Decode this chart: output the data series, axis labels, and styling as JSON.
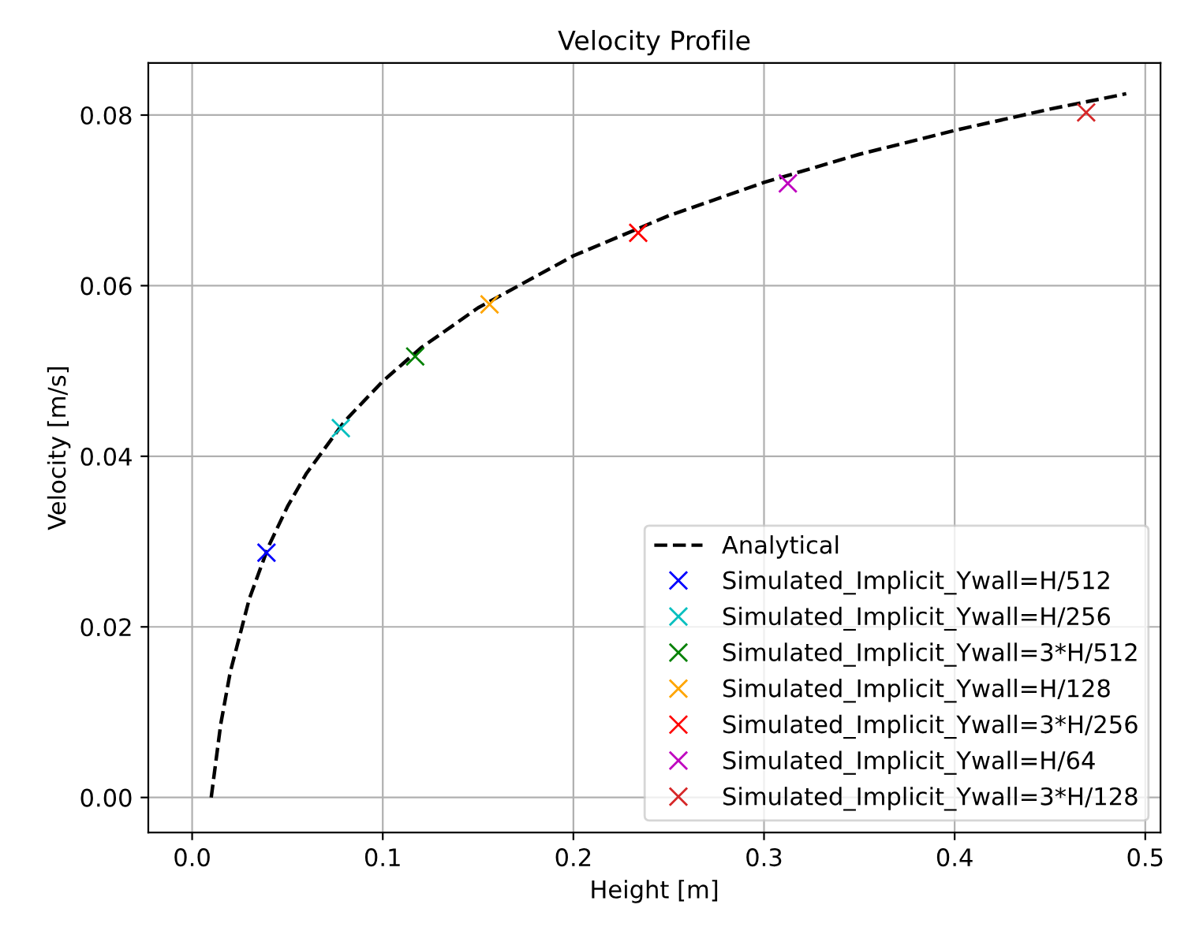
{
  "chart_data": {
    "type": "line",
    "title": "Velocity Profile",
    "xlabel": "Height [m]",
    "ylabel": "Velocity [m/s]",
    "xlim": [
      -0.023,
      0.508
    ],
    "ylim": [
      -0.0041,
      0.0861
    ],
    "xticks": [
      {
        "value": 0,
        "label": "0.0"
      },
      0.1,
      0.2,
      0.3,
      0.4,
      0.5
    ],
    "yticks": [
      {
        "value": 0,
        "label": "0.00"
      },
      {
        "value": 0.02,
        "label": "0.02"
      },
      {
        "value": 0.04,
        "label": "0.04"
      },
      {
        "value": 0.06,
        "label": "0.06"
      },
      {
        "value": 0.08,
        "label": "0.08"
      }
    ],
    "grid": true,
    "legend": "bottom right",
    "series": [
      {
        "name": "Analytical",
        "line_style": "dashed",
        "marker": "none",
        "color": "#000000",
        "x": [
          0.01,
          0.015,
          0.02,
          0.03,
          0.04,
          0.05,
          0.06,
          0.08,
          0.1,
          0.12,
          0.15,
          0.2,
          0.25,
          0.3,
          0.35,
          0.4,
          0.45,
          0.49
        ],
        "values": [
          0,
          0.0086,
          0.0147,
          0.0233,
          0.0294,
          0.0341,
          0.038,
          0.0441,
          0.0488,
          0.0527,
          0.0574,
          0.0635,
          0.0682,
          0.0721,
          0.0754,
          0.0782,
          0.0807,
          0.0825
        ]
      },
      {
        "name": "Simulated_Implicit_Ywall=H/512",
        "type": "scatter",
        "marker": "cross",
        "color": "#0000ff",
        "x": [
          0.039
        ],
        "values": [
          0.0287
        ]
      },
      {
        "name": "Simulated_Implicit_Ywall=H/256",
        "type": "scatter",
        "marker": "cross",
        "color": "#00bfbf",
        "x": [
          0.078
        ],
        "values": [
          0.0433
        ]
      },
      {
        "name": "Simulated_Implicit_Ywall=3*H/512",
        "type": "scatter",
        "marker": "cross",
        "color": "#008000",
        "x": [
          0.117
        ],
        "values": [
          0.0517
        ]
      },
      {
        "name": "Simulated_Implicit_Ywall=H/128",
        "type": "scatter",
        "marker": "cross",
        "color": "#ffa500",
        "x": [
          0.156
        ],
        "values": [
          0.0578
        ]
      },
      {
        "name": "Simulated_Implicit_Ywall=3*H/256",
        "type": "scatter",
        "marker": "cross",
        "color": "#ff0000",
        "x": [
          0.234
        ],
        "values": [
          0.0662
        ]
      },
      {
        "name": "Simulated_Implicit_Ywall=H/64",
        "type": "scatter",
        "marker": "cross",
        "color": "#bf00bf",
        "x": [
          0.3125
        ],
        "values": [
          0.072
        ]
      },
      {
        "name": "Simulated_Implicit_Ywall=3*H/128",
        "type": "scatter",
        "marker": "cross",
        "color": "#d62728",
        "x": [
          0.469
        ],
        "values": [
          0.0803
        ]
      }
    ]
  }
}
